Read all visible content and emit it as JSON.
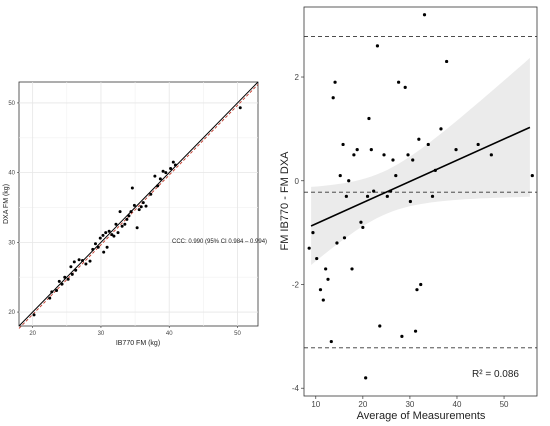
{
  "chart_data": [
    {
      "type": "scatter",
      "title": "",
      "xlabel": "IB770 FM (kg)",
      "ylabel": "DXA FM (kg)",
      "xlim": [
        18,
        53
      ],
      "ylim": [
        18,
        53
      ],
      "xticks": [
        20,
        30,
        40,
        50
      ],
      "yticks": [
        20,
        30,
        40,
        50
      ],
      "grid": true,
      "annotation": "CCC: 0.990 (95% CI 0.984 – 0.994)",
      "identity_line_color": "#c0392b",
      "fit_line_color": "#000000",
      "points": [
        [
          20.2,
          19.6
        ],
        [
          22.5,
          22.0
        ],
        [
          22.8,
          22.9
        ],
        [
          23.5,
          23.1
        ],
        [
          23.9,
          24.4
        ],
        [
          24.3,
          24.0
        ],
        [
          24.7,
          25.0
        ],
        [
          25.2,
          24.7
        ],
        [
          25.6,
          26.5
        ],
        [
          25.8,
          25.4
        ],
        [
          26.1,
          27.2
        ],
        [
          26.3,
          26.0
        ],
        [
          26.8,
          27.5
        ],
        [
          27.3,
          27.4
        ],
        [
          27.8,
          26.9
        ],
        [
          28.4,
          27.3
        ],
        [
          28.8,
          29.0
        ],
        [
          29.2,
          29.8
        ],
        [
          29.6,
          29.3
        ],
        [
          29.9,
          30.6
        ],
        [
          30.3,
          31.0
        ],
        [
          30.4,
          28.6
        ],
        [
          30.7,
          31.4
        ],
        [
          30.9,
          29.3
        ],
        [
          31.2,
          31.6
        ],
        [
          31.6,
          31.1
        ],
        [
          31.9,
          30.9
        ],
        [
          32.2,
          32.6
        ],
        [
          32.5,
          31.4
        ],
        [
          32.8,
          34.4
        ],
        [
          33.1,
          32.3
        ],
        [
          33.5,
          32.6
        ],
        [
          33.8,
          33.3
        ],
        [
          34.1,
          33.8
        ],
        [
          34.4,
          34.4
        ],
        [
          34.6,
          37.8
        ],
        [
          34.9,
          35.3
        ],
        [
          35.3,
          32.1
        ],
        [
          35.6,
          34.7
        ],
        [
          35.9,
          35.1
        ],
        [
          36.2,
          35.7
        ],
        [
          36.6,
          35.2
        ],
        [
          37.3,
          36.9
        ],
        [
          37.9,
          39.5
        ],
        [
          38.3,
          38.1
        ],
        [
          38.7,
          39.1
        ],
        [
          39.1,
          40.2
        ],
        [
          39.5,
          40.0
        ],
        [
          40.2,
          40.6
        ],
        [
          40.6,
          41.5
        ],
        [
          40.9,
          41.1
        ],
        [
          50.4,
          49.3
        ]
      ]
    },
    {
      "type": "scatter",
      "title": "",
      "xlabel": "Average of Measurements",
      "ylabel": "FM IB770 - FM DXA",
      "xlim": [
        7.5,
        57
      ],
      "ylim": [
        -4.15,
        3.35
      ],
      "xticks": [
        10,
        20,
        30,
        40,
        50
      ],
      "yticks": [
        -4,
        -2,
        0,
        2
      ],
      "grid": false,
      "annotation": "R² = 0.086",
      "mean_bias": -0.22,
      "upper_loa": 2.78,
      "lower_loa": -3.22,
      "regression": {
        "intercept": -1.24,
        "slope": 0.0409
      },
      "points": [
        [
          8.6,
          -1.3
        ],
        [
          9.4,
          -1.0
        ],
        [
          10.2,
          -1.5
        ],
        [
          11.0,
          -2.1
        ],
        [
          11.6,
          -2.3
        ],
        [
          12.1,
          -1.7
        ],
        [
          12.6,
          -1.9
        ],
        [
          13.3,
          -3.1
        ],
        [
          13.7,
          1.6
        ],
        [
          14.1,
          1.9
        ],
        [
          14.5,
          -1.2
        ],
        [
          15.2,
          0.1
        ],
        [
          15.8,
          0.7
        ],
        [
          16.1,
          -1.1
        ],
        [
          16.5,
          -0.3
        ],
        [
          17.0,
          0.0
        ],
        [
          17.7,
          -1.7
        ],
        [
          18.1,
          0.5
        ],
        [
          18.8,
          0.6
        ],
        [
          19.6,
          -0.8
        ],
        [
          20.0,
          -0.9
        ],
        [
          20.6,
          -3.8
        ],
        [
          21.0,
          -0.3
        ],
        [
          21.3,
          1.2
        ],
        [
          21.8,
          0.6
        ],
        [
          22.3,
          -0.2
        ],
        [
          23.1,
          2.6
        ],
        [
          23.6,
          -2.8
        ],
        [
          24.5,
          0.5
        ],
        [
          25.2,
          -0.3
        ],
        [
          25.9,
          -0.2
        ],
        [
          26.4,
          0.4
        ],
        [
          27.0,
          0.1
        ],
        [
          27.6,
          1.9
        ],
        [
          28.3,
          -3.0
        ],
        [
          29.0,
          1.8
        ],
        [
          29.6,
          0.5
        ],
        [
          30.1,
          -0.4
        ],
        [
          30.6,
          0.4
        ],
        [
          31.2,
          -2.9
        ],
        [
          31.5,
          -2.1
        ],
        [
          31.9,
          0.8
        ],
        [
          32.3,
          -2.0
        ],
        [
          33.1,
          3.2
        ],
        [
          33.9,
          0.7
        ],
        [
          34.8,
          -0.3
        ],
        [
          35.4,
          0.2
        ],
        [
          36.6,
          1.0
        ],
        [
          37.8,
          2.3
        ],
        [
          39.8,
          0.6
        ],
        [
          44.5,
          0.7
        ],
        [
          47.3,
          0.5
        ],
        [
          56.0,
          0.1
        ]
      ]
    }
  ]
}
